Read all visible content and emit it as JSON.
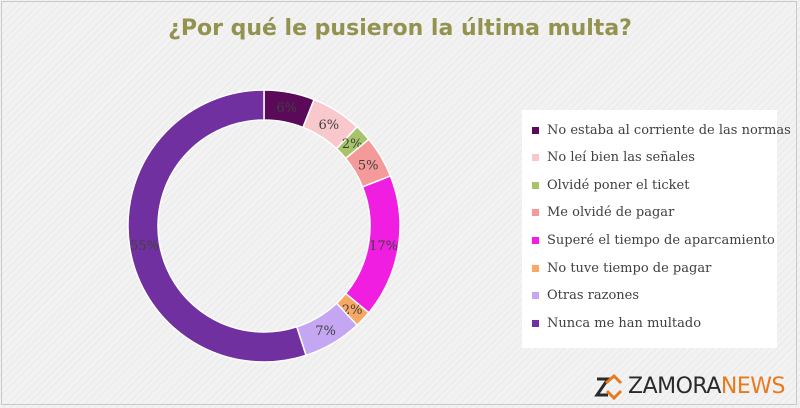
{
  "chart_data": {
    "type": "pie",
    "title": "¿Por qué le pusieron la última multa?",
    "legend_position": "right",
    "slices": [
      {
        "label": "No estaba al corriente de las normas",
        "value": 6,
        "value_label": "6%",
        "color": "#5b0a59"
      },
      {
        "label": "No leí bien las señales",
        "value": 6,
        "value_label": "6%",
        "color": "#f8c8cd"
      },
      {
        "label": "Olvidé poner el ticket",
        "value": 2,
        "value_label": "2%",
        "color": "#a8c46a"
      },
      {
        "label": "Me olvidé de pagar",
        "value": 5,
        "value_label": "5%",
        "color": "#f49a9a"
      },
      {
        "label": "Superé el tiempo de aparcamiento",
        "value": 17,
        "value_label": "17%",
        "color": "#f01ee0"
      },
      {
        "label": "No tuve tiempo de pagar",
        "value": 2,
        "value_label": "2%",
        "color": "#f6a864"
      },
      {
        "label": "Otras razones",
        "value": 7,
        "value_label": "7%",
        "color": "#c4a6f2"
      },
      {
        "label": "Nunca me han multado",
        "value": 55,
        "value_label": "55%",
        "color": "#7030a0"
      }
    ]
  },
  "logo": {
    "word1": "ZAMORA",
    "word2": "NEWS",
    "color_word2": "#e87a1d"
  }
}
